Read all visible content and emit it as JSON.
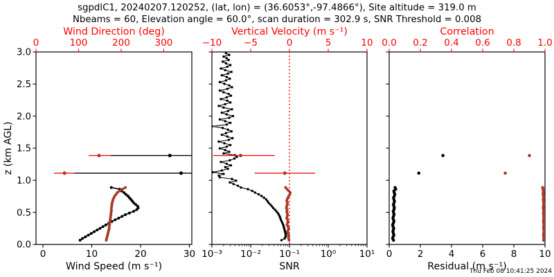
{
  "title": {
    "line1": "sgpdlC1, 20240207.120252, (lat, lon) = (36.6053°,-97.4866°), Site altitude = 319.0 m",
    "line2": "Nbeams = 60, Elevation angle = 60.0°, scan duration = 302.9 s, SNR Threshold = 0.008"
  },
  "footer": {
    "timestamp": "Thu Feb 08 10:41:25 2024"
  },
  "colors": {
    "axis_red": "#ff0000",
    "data_red": "#a83a2a",
    "errorbar_red": "#ee1111",
    "refline_red": "#ff5555",
    "black": "#000000"
  },
  "chart_data": {
    "type": "line",
    "ylabel": "z (km AGL)",
    "ylim": [
      0,
      3
    ],
    "yticks": [
      {
        "t": "0.0",
        "v": 0.0
      },
      {
        "t": "0.5",
        "v": 0.5
      },
      {
        "t": "1.0",
        "v": 1.0
      },
      {
        "t": "1.5",
        "v": 1.5
      },
      {
        "t": "2.0",
        "v": 2.0
      },
      {
        "t": "2.5",
        "v": 2.5
      },
      {
        "t": "3.0",
        "v": 3.0
      }
    ],
    "panels": [
      {
        "id": "wind",
        "bottom_axis": {
          "label": "Wind Speed (m s⁻¹)",
          "range": [
            0,
            30
          ],
          "log": false,
          "ticks": [
            {
              "t": "0",
              "v": 0
            },
            {
              "t": "10",
              "v": 10
            },
            {
              "t": "20",
              "v": 20
            },
            {
              "t": "30",
              "v": 30
            }
          ]
        },
        "top_axis": {
          "label": "Wind Direction (deg)",
          "range": [
            0,
            360
          ],
          "ticks": [
            {
              "t": "0",
              "v": 0
            },
            {
              "t": "100",
              "v": 100
            },
            {
              "t": "200",
              "v": 200
            },
            {
              "t": "300",
              "v": 300
            }
          ]
        },
        "series": [
          {
            "name": "wind-speed-profile",
            "axis": "bottom",
            "color": "black",
            "lw": 1.6,
            "r": 2.0,
            "z_start": 0.066,
            "z_step": 0.0265,
            "values": [
              7.6,
              8.1,
              8.7,
              9.3,
              9.9,
              10.5,
              11.1,
              11.7,
              12.3,
              12.9,
              13.5,
              14.1,
              14.8,
              15.5,
              16.2,
              16.9,
              17.7,
              18.6,
              19.2,
              19.5,
              19.4,
              19.0,
              18.6,
              18.3,
              18.0,
              17.7,
              17.4,
              17.0,
              16.6,
              16.1,
              15.7,
              14.0
            ]
          },
          {
            "name": "wind-direction-profile",
            "axis": "top",
            "color": "data_red",
            "lw": 2.8,
            "r": 2.0,
            "z_start": 0.066,
            "z_step": 0.0265,
            "values": [
              165,
              166,
              167,
              168,
              169,
              170,
              171,
              172,
              172,
              173,
              173,
              174,
              174,
              175,
              175,
              176,
              176,
              177,
              177,
              177,
              178,
              178,
              179,
              180,
              181,
              183,
              185,
              188,
              191,
              196,
              203,
              210
            ]
          }
        ],
        "error_bars": [
          {
            "name": "wind-speed-errorbars",
            "axis": "bottom",
            "marker_color": "black",
            "bar_color": "black",
            "rows": [
              {
                "z": 1.386,
                "v": 26.0,
                "lo": 13.9,
                "hi": 32.0
              },
              {
                "z": 1.111,
                "v": 28.3,
                "lo": 6.4,
                "hi": 32.0
              }
            ]
          },
          {
            "name": "wind-direction-errorbars",
            "axis": "top",
            "marker_color": "data_red",
            "bar_color": "errorbar_red",
            "rows": [
              {
                "z": 1.386,
                "v": 148,
                "lo": 124,
                "hi": 176
              },
              {
                "z": 1.111,
                "v": 67,
                "lo": 42,
                "hi": 92
              }
            ]
          }
        ]
      },
      {
        "id": "snr",
        "bottom_axis": {
          "label": "SNR",
          "range": [
            0.001,
            10
          ],
          "log": true,
          "ticks": [
            {
              "t": "10⁻³",
              "v": 0.001
            },
            {
              "t": "10⁻²",
              "v": 0.01
            },
            {
              "t": "10⁻¹",
              "v": 0.1
            },
            {
              "t": "10⁰",
              "v": 1
            },
            {
              "t": "10¹",
              "v": 10
            }
          ]
        },
        "top_axis": {
          "label": "Vertical Velocity (m s⁻¹)",
          "range": [
            -10,
            10
          ],
          "ticks": [
            {
              "t": "−10",
              "v": -10
            },
            {
              "t": "−5",
              "v": -5
            },
            {
              "t": "0",
              "v": 0
            },
            {
              "t": "5",
              "v": 5
            },
            {
              "t": "10",
              "v": 10
            }
          ]
        },
        "refline": {
          "axis": "top",
          "value": 0
        },
        "series": [
          {
            "name": "snr-profile",
            "axis": "bottom",
            "color": "black",
            "lw": 1.1,
            "r": 1.7,
            "z_start": 0.066,
            "z_step": 0.0265,
            "scale": 0.001,
            "values": [
              62,
              75,
              79,
              80,
              79,
              77,
              75,
              73,
              71,
              69,
              66,
              63,
              60,
              58,
              56,
              53,
              50,
              46,
              42,
              38,
              35,
              32,
              29,
              27,
              25,
              22,
              19,
              16,
              13,
              11,
              8.5,
              5.6,
              4.7,
              3.6,
              2.9,
              4.2,
              3.3,
              1.6,
              1.5,
              2.0,
              1.05,
              1.8,
              2.6,
              2.2,
              3.1,
              2.4,
              1.7,
              2.9,
              3.8,
              4.4,
              3.9,
              2.0,
              2.8,
              2.2,
              1.6,
              2.4,
              3.0,
              2.1,
              1.5,
              2.7,
              3.4,
              2.5,
              1.8,
              2.3,
              3.2,
              2.6,
              1.9,
              1.0,
              2.4,
              3.0,
              2.2,
              1.6,
              2.8,
              3.5,
              2.4,
              1.8,
              2.6,
              3.3,
              2.0,
              1.5,
              2.2,
              3.0,
              2.5,
              1.7,
              2.4,
              3.1,
              2.7,
              2.0,
              1.6,
              2.5,
              3.3,
              2.8,
              2.1,
              1.6,
              2.3,
              2.9,
              2.4,
              1.8,
              2.6,
              3.2,
              2.2,
              1.7,
              2.5,
              3.0,
              2.3,
              1.9,
              2.7,
              2.4,
              2.0,
              2.8,
              2.3
            ]
          },
          {
            "name": "vertical-velocity-profile",
            "axis": "top",
            "color": "data_red",
            "lw": 1.4,
            "r": 2.0,
            "z_start": 0.066,
            "z_step": 0.0265,
            "values": [
              -0.05,
              -0.1,
              -0.15,
              -0.1,
              -0.2,
              -0.25,
              -0.15,
              -0.1,
              -0.2,
              -0.3,
              -0.25,
              -0.2,
              -0.25,
              -0.35,
              -0.3,
              -0.25,
              -0.3,
              -0.35,
              -0.3,
              -0.4,
              -0.35,
              -0.3,
              -0.25,
              -0.35,
              -0.3,
              -0.2,
              -0.1,
              0.05,
              0.1,
              -0.1,
              -0.3,
              -0.5
            ]
          }
        ],
        "error_bars": [
          {
            "name": "vertical-velocity-errorbars",
            "axis": "top",
            "marker_color": "data_red",
            "bar_color": "errorbar_red",
            "rows": [
              {
                "z": 1.386,
                "v": -6.3,
                "lo": -9.85,
                "hi": -1.9
              },
              {
                "z": 1.111,
                "v": -0.6,
                "lo": -4.5,
                "hi": 3.3
              }
            ]
          }
        ]
      },
      {
        "id": "residual",
        "bottom_axis": {
          "label": "Residual (m s⁻¹)",
          "range": [
            0,
            10
          ],
          "log": false,
          "ticks": [
            {
              "t": "0",
              "v": 0
            },
            {
              "t": "2",
              "v": 2
            },
            {
              "t": "4",
              "v": 4
            },
            {
              "t": "6",
              "v": 6
            },
            {
              "t": "8",
              "v": 8
            },
            {
              "t": "10",
              "v": 10
            }
          ]
        },
        "top_axis": {
          "label": "Correlation",
          "range": [
            0,
            1
          ],
          "ticks": [
            {
              "t": "0.0",
              "v": 0.0
            },
            {
              "t": "0.2",
              "v": 0.2
            },
            {
              "t": "0.4",
              "v": 0.4
            },
            {
              "t": "0.6",
              "v": 0.6
            },
            {
              "t": "0.8",
              "v": 0.8
            },
            {
              "t": "1.0",
              "v": 1.0
            }
          ]
        },
        "series": [
          {
            "name": "residual-profile",
            "axis": "bottom",
            "color": "black",
            "lw": 1.1,
            "r": 2.2,
            "z_start": 0.066,
            "z_step": 0.0265,
            "values": [
              0.28,
              0.22,
              0.25,
              0.3,
              0.27,
              0.24,
              0.26,
              0.29,
              0.25,
              0.22,
              0.26,
              0.3,
              0.28,
              0.24,
              0.27,
              0.31,
              0.29,
              0.26,
              0.3,
              0.33,
              0.3,
              0.27,
              0.31,
              0.34,
              0.3,
              0.28,
              0.33,
              0.36,
              0.32,
              0.3,
              0.42,
              0.38
            ]
          },
          {
            "name": "correlation-profile",
            "axis": "top",
            "color": "data_red",
            "lw": 1.1,
            "r": 2.2,
            "z_start": 0.066,
            "z_step": 0.0265,
            "values": [
              0.991,
              0.993,
              0.992,
              0.99,
              0.992,
              0.994,
              0.993,
              0.991,
              0.992,
              0.993,
              0.992,
              0.99,
              0.991,
              0.993,
              0.992,
              0.991,
              0.99,
              0.992,
              0.991,
              0.989,
              0.99,
              0.992,
              0.991,
              0.99,
              0.989,
              0.991,
              0.99,
              0.988,
              0.989,
              0.99,
              0.987,
              0.985
            ]
          },
          {
            "name": "residual-outlier-points",
            "axis": "bottom",
            "color": "black",
            "lw": 0,
            "r": 2.3,
            "points": [
              [
                1.386,
                3.45
              ],
              [
                1.111,
                1.9
              ]
            ]
          },
          {
            "name": "correlation-outlier-points",
            "axis": "top",
            "color": "data_red",
            "lw": 0,
            "r": 2.3,
            "points": [
              [
                1.386,
                0.9
              ],
              [
                1.111,
                0.745
              ]
            ]
          }
        ]
      }
    ]
  }
}
